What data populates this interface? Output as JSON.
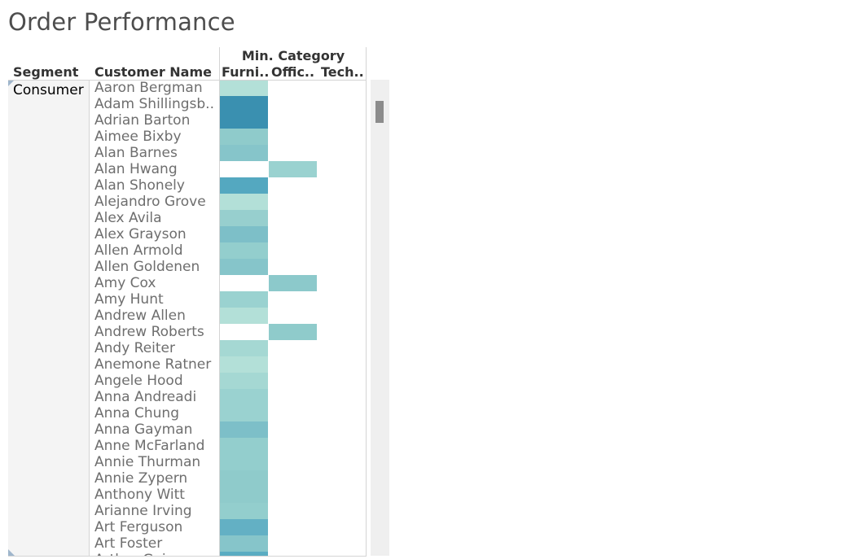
{
  "title": "Order Performance",
  "headers": {
    "segment": "Segment",
    "customer_name": "Customer Name",
    "measure": "Min. Category",
    "columns": [
      "Furni..",
      "Offic..",
      "Tech.."
    ]
  },
  "segment_value": "Consumer",
  "chart_data": {
    "type": "heatmap",
    "title": "Order Performance",
    "columns": [
      "Furni..",
      "Offic..",
      "Tech.."
    ],
    "rows": [
      {
        "name": "Aaron Bergman",
        "cells": [
          "#b3e0d8",
          null,
          null
        ]
      },
      {
        "name": "Adam Shillingsb..",
        "cells": [
          "#3a90b0",
          null,
          null
        ]
      },
      {
        "name": "Adrian Barton",
        "cells": [
          "#3a90b0",
          null,
          null
        ]
      },
      {
        "name": "Aimee Bixby",
        "cells": [
          "#8fcbcb",
          null,
          null
        ]
      },
      {
        "name": "Alan Barnes",
        "cells": [
          "#86c5ca",
          null,
          null
        ]
      },
      {
        "name": "Alan Hwang",
        "cells": [
          null,
          "#9ad2d0",
          null
        ]
      },
      {
        "name": "Alan Shonely",
        "cells": [
          "#54a8c0",
          null,
          null
        ]
      },
      {
        "name": "Alejandro Grove",
        "cells": [
          "#b3e0d8",
          null,
          null
        ]
      },
      {
        "name": "Alex Avila",
        "cells": [
          "#97cfce",
          null,
          null
        ]
      },
      {
        "name": "Alex Grayson",
        "cells": [
          "#7dbfc8",
          null,
          null
        ]
      },
      {
        "name": "Allen Armold",
        "cells": [
          "#93cecd",
          null,
          null
        ]
      },
      {
        "name": "Allen Goldenen",
        "cells": [
          "#86c5ca",
          null,
          null
        ]
      },
      {
        "name": "Amy Cox",
        "cells": [
          null,
          "#8cc9cb",
          null
        ]
      },
      {
        "name": "Amy Hunt",
        "cells": [
          "#9ad2d0",
          null,
          null
        ]
      },
      {
        "name": "Andrew Allen",
        "cells": [
          "#b3e0d8",
          null,
          null
        ]
      },
      {
        "name": "Andrew Roberts",
        "cells": [
          null,
          "#8fcbcb",
          null
        ]
      },
      {
        "name": "Andy Reiter",
        "cells": [
          "#a5d8d3",
          null,
          null
        ]
      },
      {
        "name": "Anemone Ratner",
        "cells": [
          "#b3e0d8",
          null,
          null
        ]
      },
      {
        "name": "Angele Hood",
        "cells": [
          "#a5d8d3",
          null,
          null
        ]
      },
      {
        "name": "Anna Andreadi",
        "cells": [
          "#9ad2d0",
          null,
          null
        ]
      },
      {
        "name": "Anna Chung",
        "cells": [
          "#9ad2d0",
          null,
          null
        ]
      },
      {
        "name": "Anna Gayman",
        "cells": [
          "#7dbfc8",
          null,
          null
        ]
      },
      {
        "name": "Anne McFarland",
        "cells": [
          "#93cecd",
          null,
          null
        ]
      },
      {
        "name": "Annie Thurman",
        "cells": [
          "#93cecd",
          null,
          null
        ]
      },
      {
        "name": "Annie Zypern",
        "cells": [
          "#8fcbcb",
          null,
          null
        ]
      },
      {
        "name": "Anthony Witt",
        "cells": [
          "#8fcbcb",
          null,
          null
        ]
      },
      {
        "name": "Arianne Irving",
        "cells": [
          "#93cecd",
          null,
          null
        ]
      },
      {
        "name": "Art Ferguson",
        "cells": [
          "#63b0c4",
          null,
          null
        ]
      },
      {
        "name": "Art Foster",
        "cells": [
          "#86c5ca",
          null,
          null
        ]
      },
      {
        "name": "Arthur Gainer",
        "cells": [
          "#5aacc2",
          null,
          null
        ]
      }
    ]
  }
}
